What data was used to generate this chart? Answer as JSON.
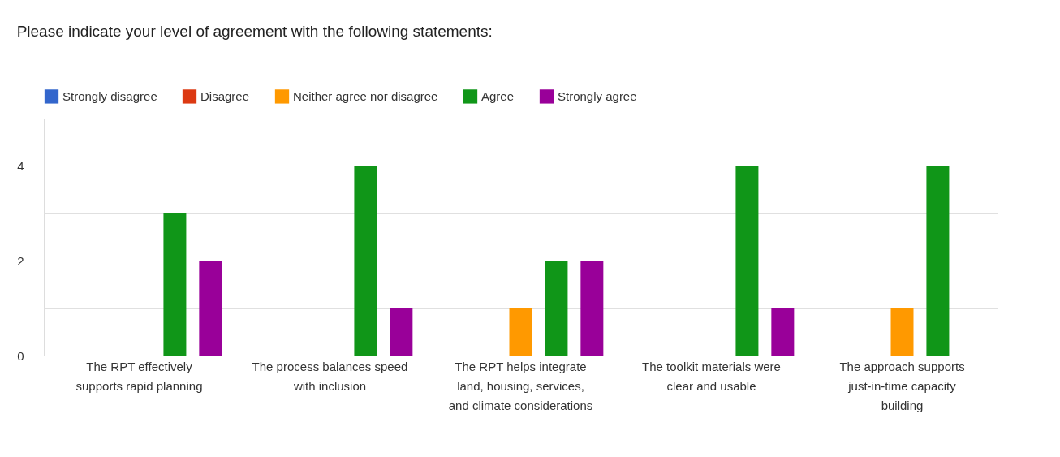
{
  "chart_data": {
    "type": "bar",
    "title": "Please indicate your level of agreement with the following statements:",
    "categories": [
      "The RPT effectively supports rapid planning",
      "The process balances speed with inclusion",
      "The RPT helps integrate land, housing, services, and climate considerations",
      "The toolkit materials were clear and usable",
      "The approach supports just-in-time capacity building"
    ],
    "series": [
      {
        "name": "Strongly disagree",
        "color": "#3366cc",
        "values": [
          0,
          0,
          0,
          0,
          0
        ]
      },
      {
        "name": "Disagree",
        "color": "#dc3912",
        "values": [
          0,
          0,
          0,
          0,
          0
        ]
      },
      {
        "name": "Neither agree nor disagree",
        "color": "#ff9900",
        "values": [
          0,
          0,
          1,
          0,
          1
        ]
      },
      {
        "name": "Agree",
        "color": "#109618",
        "values": [
          3,
          4,
          2,
          4,
          4
        ]
      },
      {
        "name": "Strongly agree",
        "color": "#990099",
        "values": [
          2,
          1,
          2,
          1,
          0
        ]
      }
    ],
    "ylim": [
      0,
      5
    ],
    "yticks": [
      0,
      {
        "value": 1,
        "label": null
      },
      2,
      {
        "value": 3,
        "label": null
      },
      4,
      {
        "value": 5,
        "label": null
      }
    ],
    "grid": "y",
    "legend": "top"
  }
}
